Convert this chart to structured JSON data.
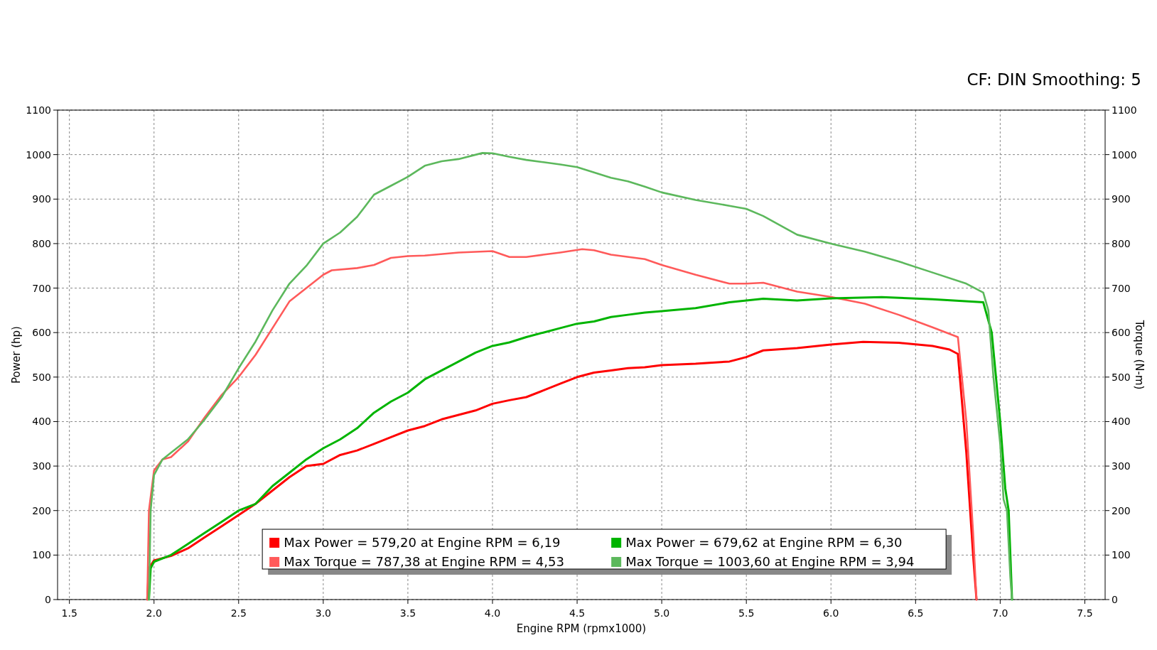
{
  "chart_data": {
    "type": "line",
    "xlabel": "Engine RPM (rpmx1000)",
    "ylabel": "Power (hp)",
    "y2label": "Torque (N-m)",
    "annotations": [
      "CF: DIN Smoothing: 5"
    ],
    "xlim": [
      1.43,
      7.62
    ],
    "xticks": [
      1.5,
      {
        "value": 2,
        "label": "2.0"
      },
      2.5,
      {
        "value": 3,
        "label": "3.0"
      },
      3.5,
      {
        "value": 4,
        "label": "4.0"
      },
      4.5,
      {
        "value": 5,
        "label": "5.0"
      },
      5.5,
      {
        "value": 6,
        "label": "6.0"
      },
      6.5,
      {
        "value": 7,
        "label": "7.0"
      },
      7.5
    ],
    "ylim": [
      0,
      1100
    ],
    "yticks": [
      0,
      100,
      200,
      300,
      400,
      500,
      600,
      700,
      800,
      900,
      1000,
      1100
    ],
    "y2lim": [
      0,
      1100
    ],
    "y2ticks": [
      0,
      100,
      200,
      300,
      400,
      500,
      600,
      700,
      800,
      900,
      1000,
      1100
    ],
    "grid": true,
    "legend": "bottom",
    "line_style": "solid",
    "series": [
      {
        "name": "Max Power = 579,20 at Engine RPM = 6,19",
        "color": "#ff0000",
        "x": [
          1.96,
          1.97,
          2.0,
          2.1,
          2.2,
          2.3,
          2.4,
          2.5,
          2.6,
          2.7,
          2.8,
          2.9,
          3.0,
          3.1,
          3.2,
          3.3,
          3.4,
          3.5,
          3.6,
          3.7,
          3.8,
          3.9,
          4.0,
          4.1,
          4.2,
          4.3,
          4.4,
          4.5,
          4.6,
          4.7,
          4.8,
          4.9,
          5.0,
          5.2,
          5.4,
          5.5,
          5.6,
          5.8,
          6.0,
          6.19,
          6.4,
          6.6,
          6.7,
          6.75,
          6.8,
          6.84,
          6.86
        ],
        "values": [
          0,
          70,
          88,
          98,
          115,
          140,
          165,
          190,
          215,
          245,
          275,
          300,
          305,
          325,
          335,
          350,
          365,
          380,
          390,
          405,
          415,
          425,
          440,
          448,
          455,
          470,
          485,
          500,
          510,
          515,
          520,
          522,
          527,
          530,
          535,
          545,
          560,
          565,
          573,
          579.2,
          577,
          570,
          562,
          552,
          330,
          100,
          0
        ]
      },
      {
        "name": "Max Torque = 787,38 at Engine RPM = 4,53",
        "color": "#ff5a5a",
        "axis": "y2",
        "x": [
          1.96,
          1.97,
          2.0,
          2.05,
          2.1,
          2.2,
          2.3,
          2.4,
          2.5,
          2.6,
          2.7,
          2.8,
          2.9,
          3.0,
          3.05,
          3.2,
          3.3,
          3.4,
          3.5,
          3.6,
          3.8,
          4.0,
          4.1,
          4.2,
          4.3,
          4.4,
          4.53,
          4.6,
          4.7,
          4.9,
          5.0,
          5.2,
          5.4,
          5.5,
          5.6,
          5.8,
          6.0,
          6.2,
          6.4,
          6.6,
          6.75,
          6.8,
          6.84,
          6.86
        ],
        "values": [
          0,
          200,
          290,
          315,
          320,
          355,
          410,
          460,
          500,
          550,
          610,
          670,
          700,
          730,
          740,
          745,
          752,
          768,
          772,
          773,
          780,
          783,
          770,
          770,
          775,
          780,
          787.38,
          785,
          775,
          765,
          752,
          730,
          710,
          710,
          712,
          692,
          680,
          665,
          640,
          612,
          590,
          400,
          150,
          0
        ]
      },
      {
        "name": "Max Power = 679,62 at Engine RPM = 6,30",
        "color": "#00b400",
        "x": [
          1.97,
          1.98,
          2.0,
          2.1,
          2.2,
          2.3,
          2.4,
          2.5,
          2.6,
          2.7,
          2.8,
          2.9,
          3.0,
          3.1,
          3.2,
          3.3,
          3.4,
          3.5,
          3.6,
          3.7,
          3.8,
          3.9,
          4.0,
          4.1,
          4.2,
          4.3,
          4.4,
          4.5,
          4.6,
          4.7,
          4.8,
          4.9,
          5.0,
          5.2,
          5.4,
          5.6,
          5.8,
          6.0,
          6.3,
          6.6,
          6.9,
          6.95,
          7.0,
          7.03,
          7.05,
          7.07
        ],
        "values": [
          0,
          70,
          85,
          100,
          125,
          150,
          175,
          200,
          215,
          255,
          285,
          315,
          340,
          360,
          385,
          420,
          445,
          465,
          495,
          515,
          535,
          555,
          570,
          578,
          590,
          600,
          610,
          620,
          625,
          635,
          640,
          645,
          648,
          655,
          668,
          676,
          672,
          677,
          679.62,
          675,
          668,
          600,
          400,
          250,
          200,
          0
        ]
      },
      {
        "name": "Max Torque = 1003,60 at Engine RPM = 3,94",
        "color": "#5cb85c",
        "axis": "y2",
        "x": [
          1.97,
          1.98,
          2.0,
          2.05,
          2.1,
          2.2,
          2.3,
          2.4,
          2.5,
          2.6,
          2.7,
          2.8,
          2.9,
          3.0,
          3.1,
          3.2,
          3.3,
          3.4,
          3.5,
          3.6,
          3.7,
          3.8,
          3.94,
          4.0,
          4.1,
          4.2,
          4.3,
          4.4,
          4.5,
          4.6,
          4.7,
          4.8,
          4.9,
          5.0,
          5.2,
          5.4,
          5.5,
          5.6,
          5.8,
          6.0,
          6.2,
          6.4,
          6.6,
          6.8,
          6.9,
          6.93,
          6.96,
          7.0,
          7.02,
          7.04,
          7.06,
          7.07
        ],
        "values": [
          0,
          200,
          280,
          315,
          330,
          360,
          405,
          455,
          520,
          580,
          650,
          710,
          750,
          800,
          825,
          860,
          910,
          930,
          950,
          975,
          985,
          990,
          1003.6,
          1003,
          995,
          988,
          983,
          978,
          972,
          960,
          948,
          940,
          928,
          915,
          898,
          885,
          878,
          862,
          820,
          800,
          782,
          760,
          735,
          710,
          690,
          650,
          500,
          350,
          225,
          200,
          50,
          0
        ]
      }
    ]
  }
}
